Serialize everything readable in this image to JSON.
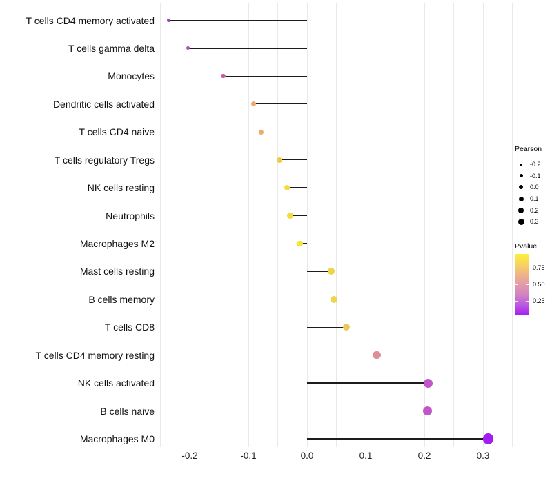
{
  "chart_data": {
    "type": "lollipop",
    "orientation": "horizontal",
    "title": "",
    "xlabel": "",
    "ylabel": "",
    "xlim": [
      -0.25,
      0.35
    ],
    "baseline": 0,
    "grid": "vertical minor gridlines every 0.05, light gray, white background",
    "x_ticks": [
      -0.2,
      -0.1,
      0.0,
      0.1,
      0.2,
      0.3
    ],
    "x_tick_labels": [
      "-0.2",
      "-0.1",
      "0.0",
      "0.1",
      "0.2",
      "0.3"
    ],
    "points": [
      {
        "label": "T cells CD4 memory activated",
        "pearson": -0.236,
        "color": "#A83EC6"
      },
      {
        "label": "T cells gamma delta",
        "pearson": -0.203,
        "color": "#B24AC6"
      },
      {
        "label": "Monocytes",
        "pearson": -0.143,
        "color": "#C75F9D"
      },
      {
        "label": "Dendritic cells activated",
        "pearson": -0.091,
        "color": "#F0AA6F"
      },
      {
        "label": "T cells CD4 naive",
        "pearson": -0.078,
        "color": "#EFAC69"
      },
      {
        "label": "T cells regulatory  Tregs",
        "pearson": -0.047,
        "color": "#EFCB4D"
      },
      {
        "label": "NK cells resting",
        "pearson": -0.034,
        "color": "#F4DC3C"
      },
      {
        "label": "Neutrophils",
        "pearson": -0.029,
        "color": "#F4DC3C"
      },
      {
        "label": "Macrophages M2",
        "pearson": -0.012,
        "color": "#F7E62B"
      },
      {
        "label": "Mast cells resting",
        "pearson": 0.041,
        "color": "#F0D44C"
      },
      {
        "label": "B cells memory",
        "pearson": 0.046,
        "color": "#F0D44C"
      },
      {
        "label": "T cells CD8",
        "pearson": 0.067,
        "color": "#EEC95A"
      },
      {
        "label": "T cells CD4 memory resting",
        "pearson": 0.119,
        "color": "#DB9093"
      },
      {
        "label": "NK cells activated",
        "pearson": 0.206,
        "color": "#C156C8"
      },
      {
        "label": "B cells naive",
        "pearson": 0.205,
        "color": "#C156C8"
      },
      {
        "label": "Macrophages M0",
        "pearson": 0.309,
        "color": "#A21EF0"
      }
    ],
    "legend_position": "right"
  },
  "legend_pearson": {
    "title": "Pearson",
    "entries": [
      "-0.2",
      "-0.1",
      "0.0",
      "0.1",
      "0.2",
      "0.3"
    ],
    "dot_color": "#000000"
  },
  "legend_pvalue": {
    "title": "Pvalue",
    "tick_labels": [
      "0.75",
      "0.50",
      "0.25"
    ],
    "gradient_top_to_bottom": [
      "#FBF03A",
      "#F7D55F",
      "#F0B585",
      "#E19BA8",
      "#D284C0",
      "#BC5ADF",
      "#A621F2"
    ]
  }
}
